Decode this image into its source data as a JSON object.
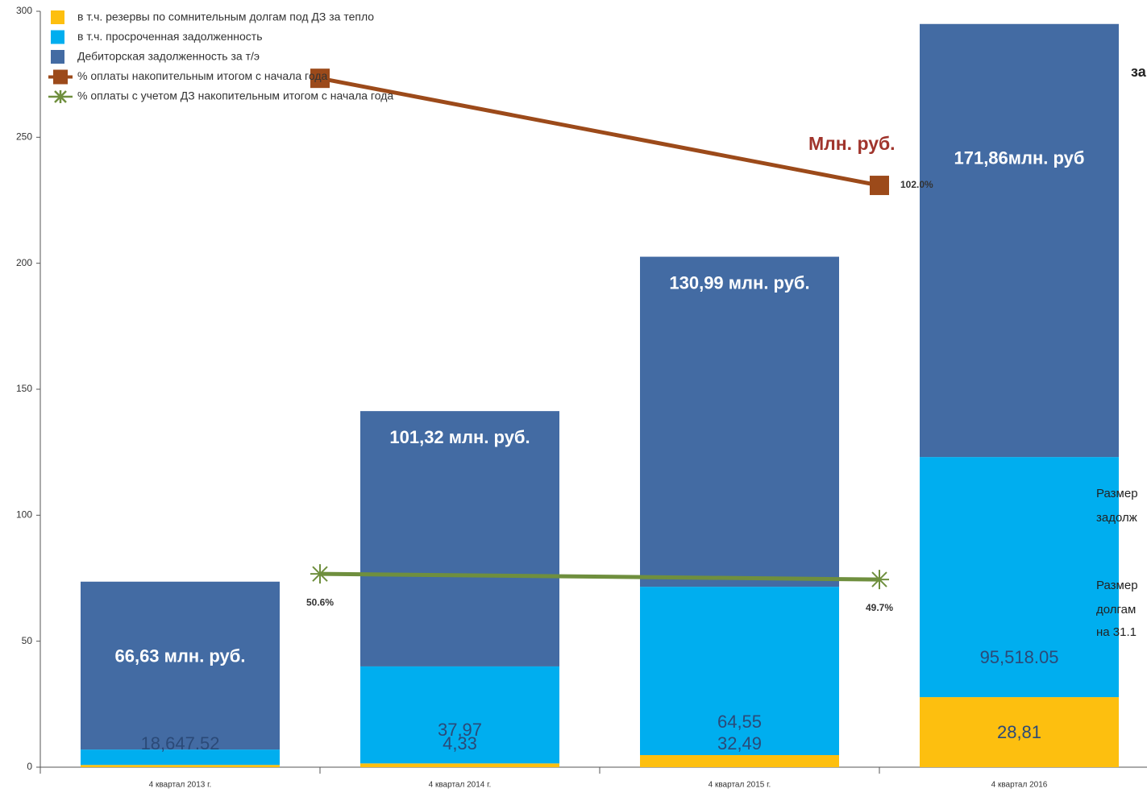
{
  "chart_data": {
    "type": "bar",
    "categories": [
      "4 квартал 2013 г.",
      "4 квартал 2014 г.",
      "4 квартал 2015 г.",
      "4 квартал 2016"
    ],
    "ylim": [
      0,
      300
    ],
    "yticks": [
      0,
      50,
      100,
      150,
      200,
      250,
      300
    ],
    "grid": false,
    "stacked": true,
    "series": [
      {
        "name": "в т.ч. резервы по сомнительным долгам под ДЗ за тепло",
        "color": "#fdbf0f",
        "values": [
          0.9,
          1.5,
          4.8,
          27.8
        ]
      },
      {
        "name": "в т.ч. просроченная задолженность",
        "color": "#00aeef",
        "values": [
          6.1,
          38.5,
          66.8,
          95.3
        ]
      },
      {
        "name": "Дебиторская задолженность за т/э",
        "color": "#436ba3",
        "values": [
          66.63,
          101.32,
          130.99,
          171.86
        ],
        "value_labels": [
          "66,63 млн. руб.",
          "101,32 млн. руб.",
          "130,99 млн. руб.",
          "171,86млн. руб"
        ]
      }
    ],
    "lines": [
      {
        "name": "% оплаты накопительным итогом с начала года",
        "color": "#9c4a1a",
        "marker": "square",
        "values": [
          273.4,
          230.9
        ],
        "point_labels": [
          "",
          "102.0%"
        ]
      },
      {
        "name": "% оплаты с учетом ДЗ накопительным итогом с начала года",
        "color": "#6f8f3e",
        "marker": "star",
        "values": [
          76.7,
          74.5
        ],
        "point_labels": [
          "50.6%",
          "49.7%"
        ]
      }
    ],
    "upper_segment_labels": [
      "",
      "37,97",
      "64,55",
      "95,518.05"
    ],
    "lower_segment_labels": [
      "18,647.52",
      "4,33",
      "32,49",
      "28,81"
    ],
    "unit_note": "Млн. руб.",
    "side_notes": [
      "за",
      "Размер",
      "задолж",
      "Размер",
      "долгам",
      "на 31.1"
    ],
    "legend": "upper left"
  }
}
